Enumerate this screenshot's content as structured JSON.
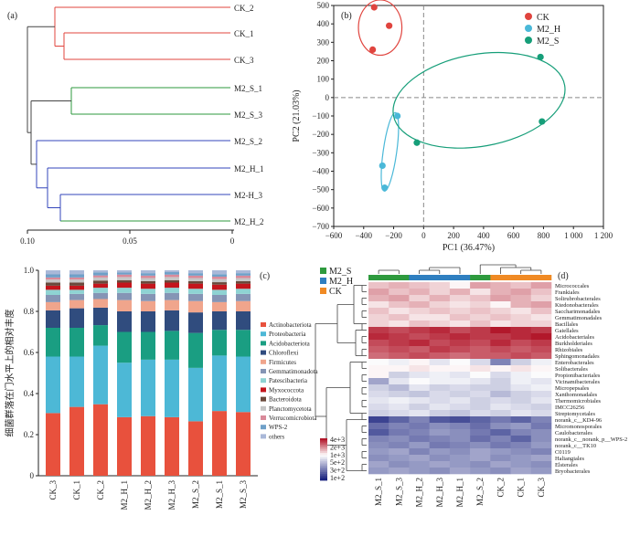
{
  "chart_data": [
    {
      "id": "a",
      "panel_label": "(a)",
      "type": "dendrogram",
      "leaves": [
        {
          "name": "CK_2",
          "color": "#e0443e"
        },
        {
          "name": "CK_1",
          "color": "#e0443e"
        },
        {
          "name": "CK_3",
          "color": "#e0443e"
        },
        {
          "name": "M2_S_1",
          "color": "#2e9a3e"
        },
        {
          "name": "M2_S_3",
          "color": "#2e9a3e"
        },
        {
          "name": "M2_S_2",
          "color": "#3344bb"
        },
        {
          "name": "M2_H_1",
          "color": "#3344bb"
        },
        {
          "name": "M2-H_3",
          "color": "#3344bb"
        },
        {
          "name": "M2_H_2",
          "color": "#2e9a3e"
        }
      ],
      "axis_ticks": [
        "0.10",
        "0.05",
        "0"
      ],
      "xlim": [
        0.1,
        0
      ]
    },
    {
      "id": "b",
      "panel_label": "(b)",
      "type": "scatter",
      "xlabel": "PC1 (36.47%)",
      "ylabel": "PC2 (21.03%)",
      "xlim": [
        -600,
        1200
      ],
      "ylim": [
        -700,
        500
      ],
      "x_ticks": [
        "−600",
        "−400",
        "−200",
        "0",
        "200",
        "400",
        "600",
        "800",
        "1 000",
        "1 200"
      ],
      "y_ticks": [
        "500",
        "400",
        "300",
        "200",
        "100",
        "0",
        "−100",
        "−200",
        "−300",
        "−400",
        "−500",
        "−600",
        "−700"
      ],
      "legend_position": "top-right",
      "series": [
        {
          "name": "CK",
          "color": "#e0443e",
          "points": [
            [
              -330,
              490
            ],
            [
              -230,
              390
            ],
            [
              -340,
              260
            ]
          ]
        },
        {
          "name": "M2_H",
          "color": "#4ab8d8",
          "points": [
            [
              -175,
              -100
            ],
            [
              -275,
              -370
            ],
            [
              -260,
              -490
            ]
          ]
        },
        {
          "name": "M2_S",
          "color": "#169e79",
          "points": [
            [
              780,
              220
            ],
            [
              790,
              -130
            ],
            [
              -45,
              -245
            ]
          ]
        }
      ]
    },
    {
      "id": "c",
      "panel_label": "(c)",
      "type": "bar",
      "stacked": true,
      "ylabel": "细菌群落在门水平上的相对丰度",
      "ylim": [
        0,
        1.0
      ],
      "y_ticks": [
        "0",
        "0.2",
        "0.4",
        "0.6",
        "0.8",
        "1.0"
      ],
      "categories": [
        "CK_3",
        "CK_1",
        "CK_2",
        "M2_H_1",
        "M2_H_2",
        "M2_H_3",
        "M2_S_2",
        "M2_S_1",
        "M2_S_3"
      ],
      "series": [
        {
          "name": "Actinobacteriota",
          "color": "#e8513d",
          "values": [
            0.305,
            0.335,
            0.348,
            0.285,
            0.29,
            0.285,
            0.265,
            0.315,
            0.31
          ]
        },
        {
          "name": "Proteobacteria",
          "color": "#4db8d6",
          "values": [
            0.275,
            0.245,
            0.285,
            0.265,
            0.275,
            0.28,
            0.26,
            0.27,
            0.27
          ]
        },
        {
          "name": "Acidobacteriota",
          "color": "#1a9e82",
          "values": [
            0.14,
            0.14,
            0.1,
            0.15,
            0.135,
            0.14,
            0.17,
            0.125,
            0.13
          ]
        },
        {
          "name": "Chloroflexi",
          "color": "#304c7e",
          "values": [
            0.085,
            0.095,
            0.085,
            0.1,
            0.1,
            0.1,
            0.1,
            0.09,
            0.09
          ]
        },
        {
          "name": "Firmicutes",
          "color": "#f0a58c",
          "values": [
            0.04,
            0.04,
            0.042,
            0.055,
            0.05,
            0.05,
            0.055,
            0.045,
            0.05
          ]
        },
        {
          "name": "Gemmatimonadota",
          "color": "#8595b5",
          "values": [
            0.035,
            0.03,
            0.03,
            0.035,
            0.035,
            0.035,
            0.035,
            0.035,
            0.035
          ]
        },
        {
          "name": "Patescibacteria",
          "color": "#8fd3d3",
          "values": [
            0.025,
            0.02,
            0.025,
            0.025,
            0.025,
            0.025,
            0.025,
            0.025,
            0.025
          ]
        },
        {
          "name": "Myxococcota",
          "color": "#c4151c",
          "values": [
            0.02,
            0.02,
            0.02,
            0.025,
            0.025,
            0.025,
            0.025,
            0.025,
            0.025
          ]
        },
        {
          "name": "Bacteroidota",
          "color": "#6a4a3c",
          "values": [
            0.015,
            0.015,
            0.015,
            0.012,
            0.012,
            0.012,
            0.012,
            0.012,
            0.012
          ]
        },
        {
          "name": "Planctomycetota",
          "color": "#c6c6c6",
          "values": [
            0.015,
            0.015,
            0.015,
            0.015,
            0.015,
            0.015,
            0.015,
            0.015,
            0.015
          ]
        },
        {
          "name": "Verrucomicrobiota",
          "color": "#d98a9a",
          "values": [
            0.01,
            0.01,
            0.01,
            0.012,
            0.012,
            0.012,
            0.012,
            0.012,
            0.012
          ]
        },
        {
          "name": "WPS-2",
          "color": "#6fa0c8",
          "values": [
            0.015,
            0.015,
            0.015,
            0.01,
            0.012,
            0.012,
            0.012,
            0.012,
            0.012
          ]
        },
        {
          "name": "others",
          "color": "#a9b8d8",
          "values": [
            0.02,
            0.02,
            0.01,
            0.011,
            0.014,
            0.009,
            0.014,
            0.019,
            0.014
          ]
        }
      ]
    },
    {
      "id": "d",
      "panel_label": "(d)",
      "type": "heatmap",
      "groups": [
        {
          "name": "M2_S",
          "color": "#2e9a3e"
        },
        {
          "name": "M2_H",
          "color": "#2f7fc0"
        },
        {
          "name": "CK",
          "color": "#f08a24"
        }
      ],
      "column_groups": [
        "M2_S",
        "M2_S",
        "M2_H",
        "M2_H",
        "M2_H",
        "M2_S",
        "CK",
        "CK",
        "CK"
      ],
      "columns": [
        "M2_S_1",
        "M2_S_3",
        "M2_H_2",
        "M2_H_3",
        "M2_H_1",
        "M2_S_2",
        "CK_2",
        "CK_1",
        "CK_3"
      ],
      "rows": [
        "Micrococcales",
        "Frankiales",
        "Solirubrobacterales",
        "Ktedonobacterales",
        "Saccharimonadales",
        "Gemmatimonadales",
        "Bacillales",
        "Gaiellales",
        "Acidobacteriales",
        "Burkholderiales",
        "Rhizobiales",
        "Sphingomonadales",
        "Enterobacterales",
        "Solibacterales",
        "Propionibacteriales",
        "Vicinamibacterales",
        "Micropepsales",
        "Xanthomonadales",
        "Thermomicrobiales",
        "IMCC26256",
        "Streptomycetales",
        "norank_c__KD4-96",
        "Micromonosporales",
        "Caulobacterales",
        "norank_c__norank_p__WPS-2",
        "norank_c__TK10",
        "C0119",
        "Haliangiales",
        "Elsterales",
        "Bryobacterales"
      ],
      "color_scale": {
        "low": "#1a237e",
        "mid": "#ffffff",
        "high": "#b2182b"
      },
      "legend_labels": [
        "4e+3",
        "2e+3",
        "1e+3",
        "5e+2",
        "3e+2",
        "1e+2"
      ],
      "values": [
        [
          2.4,
          2.5,
          2.4,
          2.3,
          2.1,
          2.6,
          2.5,
          2.4,
          2.6
        ],
        [
          2.6,
          2.4,
          2.5,
          2.3,
          2.5,
          2.2,
          2.5,
          2.6,
          2.4
        ],
        [
          2.5,
          2.6,
          2.3,
          2.5,
          2.3,
          2.4,
          2.6,
          2.5,
          2.3
        ],
        [
          2.2,
          2.4,
          2.5,
          2.3,
          2.2,
          2.3,
          2.1,
          2.5,
          2.6
        ],
        [
          2.4,
          2.2,
          2.3,
          2.4,
          2.3,
          2.4,
          2.3,
          2.2,
          2.4
        ],
        [
          2.3,
          2.4,
          2.2,
          2.2,
          2.4,
          2.3,
          2.4,
          2.3,
          2.2
        ],
        [
          2.3,
          2.2,
          2.4,
          2.3,
          2.2,
          2.4,
          2.2,
          2.3,
          2.3
        ],
        [
          3.2,
          3.1,
          3.2,
          3.3,
          3.1,
          3.2,
          3.4,
          3.3,
          3.2
        ],
        [
          3.3,
          3.2,
          3.1,
          3.2,
          3.3,
          3.2,
          3.2,
          3.3,
          3.4
        ],
        [
          3.1,
          3.2,
          3.3,
          3.1,
          3.2,
          3.1,
          3.3,
          3.1,
          3.2
        ],
        [
          3.0,
          3.1,
          3.0,
          3.2,
          3.1,
          3.0,
          3.1,
          3.0,
          3.1
        ],
        [
          2.9,
          3.0,
          3.1,
          3.0,
          2.9,
          3.0,
          3.0,
          3.1,
          3.0
        ],
        [
          2.0,
          1.9,
          2.1,
          1.8,
          2.0,
          1.7,
          0.9,
          1.6,
          1.9
        ],
        [
          2.1,
          2.1,
          2.2,
          2.1,
          2.1,
          2.2,
          2.1,
          2.2,
          2.1
        ],
        [
          2.1,
          1.6,
          1.8,
          1.9,
          1.8,
          2.0,
          1.7,
          1.9,
          2.0
        ],
        [
          1.2,
          1.8,
          2.0,
          1.9,
          1.9,
          1.8,
          1.6,
          1.9,
          1.8
        ],
        [
          1.6,
          1.4,
          1.8,
          1.6,
          1.7,
          1.6,
          1.6,
          1.8,
          1.9
        ],
        [
          1.7,
          1.6,
          1.5,
          1.7,
          1.6,
          1.7,
          1.4,
          1.6,
          1.7
        ],
        [
          1.8,
          1.9,
          1.8,
          1.7,
          1.8,
          1.6,
          1.7,
          1.6,
          1.8
        ],
        [
          1.7,
          1.8,
          1.6,
          1.8,
          1.7,
          1.6,
          1.8,
          1.7,
          1.6
        ],
        [
          1.6,
          1.7,
          1.8,
          1.6,
          1.5,
          1.7,
          1.6,
          1.8,
          1.7
        ],
        [
          0.3,
          0.6,
          0.9,
          0.5,
          0.4,
          0.6,
          0.8,
          0.6,
          0.9
        ],
        [
          0.7,
          0.9,
          0.8,
          1.0,
          0.9,
          0.7,
          1.0,
          1.1,
          0.8
        ],
        [
          0.5,
          0.8,
          0.9,
          1.1,
          1.0,
          0.8,
          0.6,
          0.9,
          1.0
        ],
        [
          0.9,
          1.0,
          0.8,
          0.9,
          1.0,
          0.7,
          0.9,
          0.6,
          1.0
        ],
        [
          1.0,
          0.9,
          1.1,
          0.8,
          0.9,
          1.0,
          0.8,
          0.9,
          1.1
        ],
        [
          1.1,
          1.2,
          0.9,
          1.1,
          1.0,
          1.2,
          1.1,
          1.0,
          0.9
        ],
        [
          1.0,
          1.1,
          1.2,
          1.0,
          1.1,
          1.2,
          1.0,
          1.1,
          1.2
        ],
        [
          1.2,
          1.0,
          1.1,
          1.2,
          1.1,
          1.0,
          1.2,
          1.1,
          1.0
        ],
        [
          1.1,
          1.2,
          1.1,
          1.0,
          1.2,
          1.1,
          1.0,
          1.2,
          1.1
        ]
      ]
    }
  ]
}
